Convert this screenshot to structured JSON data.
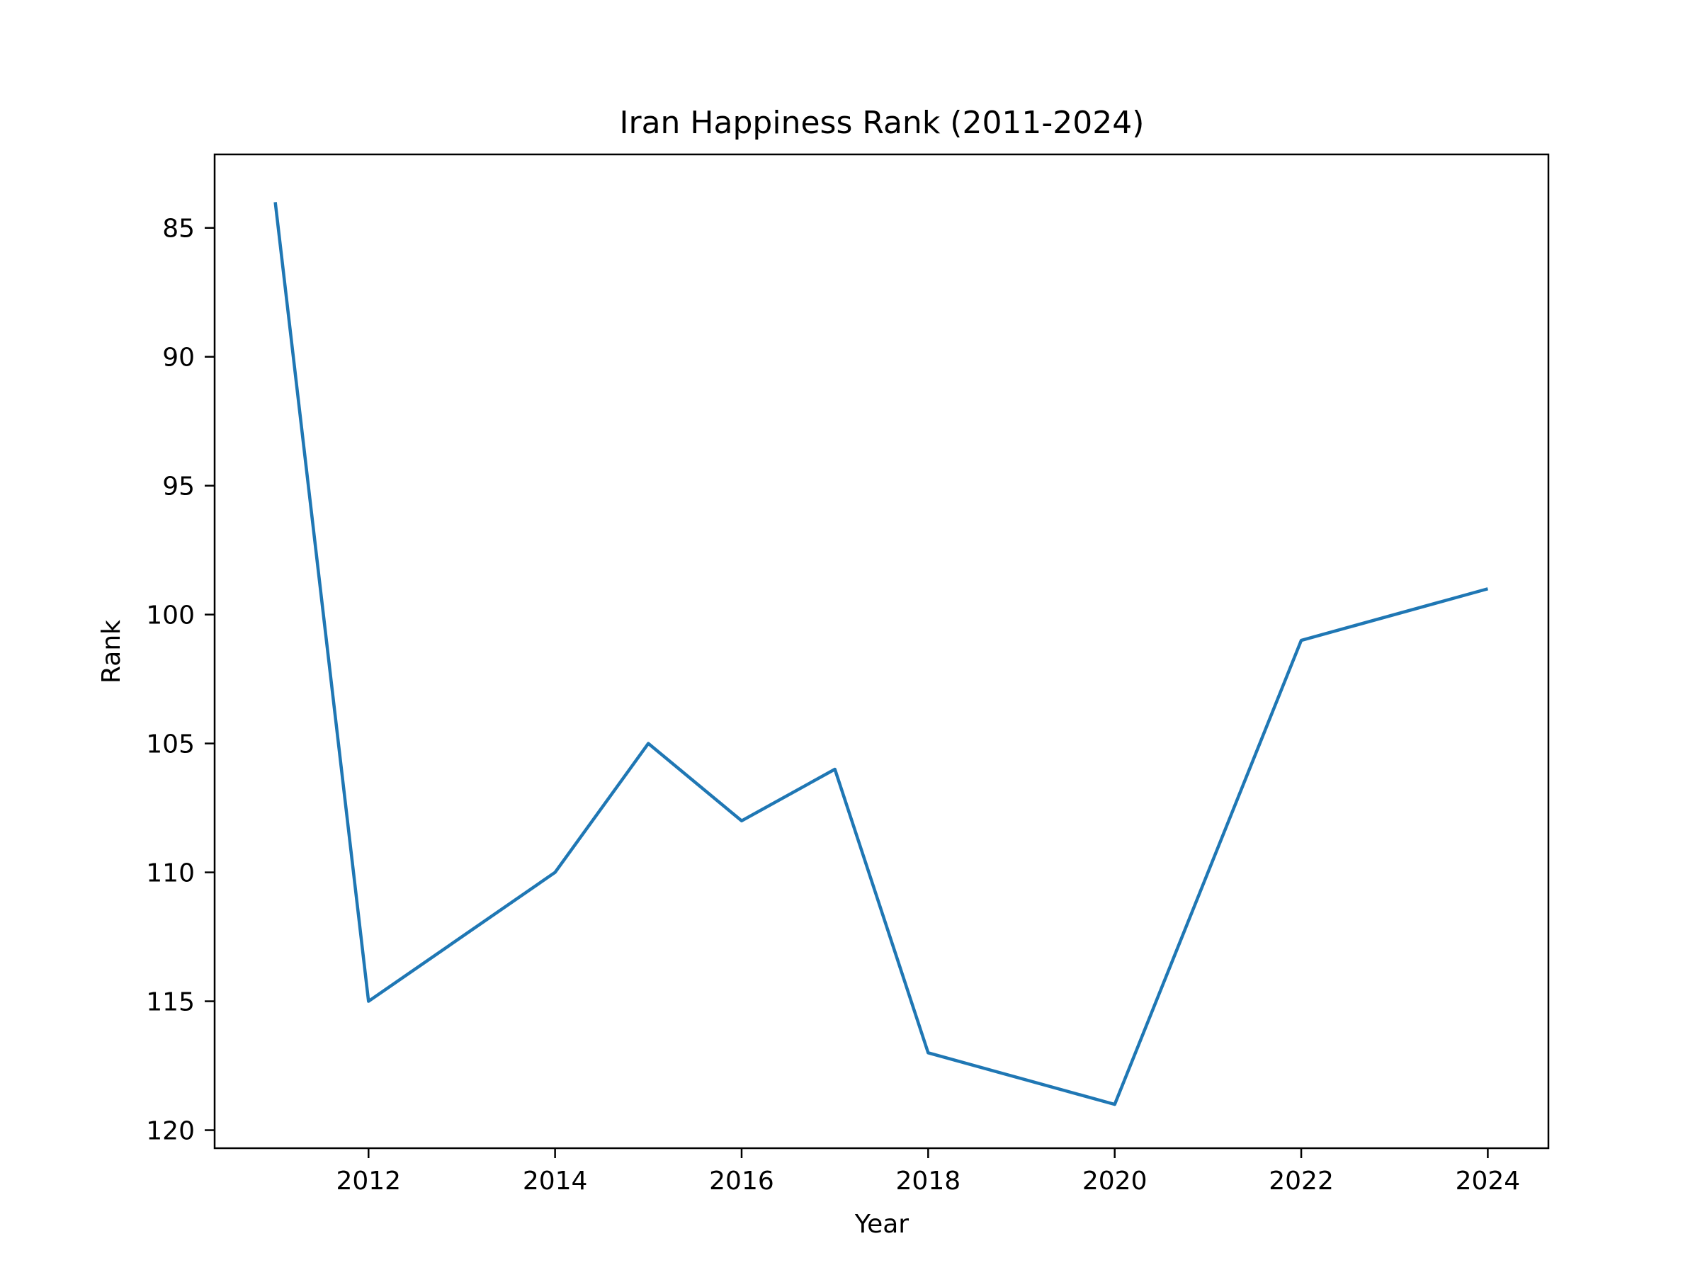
{
  "chart_data": {
    "type": "line",
    "title": "Iran Happiness Rank (2011-2024)",
    "xlabel": "Year",
    "ylabel": "Rank",
    "xlim": [
      2010.35,
      2024.65
    ],
    "ylim": [
      120.7,
      82.15
    ],
    "y_inverted": true,
    "xticks": [
      2012,
      2014,
      2016,
      2018,
      2020,
      2022,
      2024
    ],
    "yticks": [
      85,
      90,
      95,
      100,
      105,
      110,
      115,
      120
    ],
    "grid": false,
    "series": [
      {
        "color": "#1f77b4",
        "x": [
          2011,
          2012,
          2014,
          2015,
          2016,
          2017,
          2018,
          2020,
          2022,
          2024
        ],
        "y": [
          84,
          115,
          110,
          105,
          108,
          106,
          117,
          119,
          101,
          99
        ]
      }
    ]
  }
}
